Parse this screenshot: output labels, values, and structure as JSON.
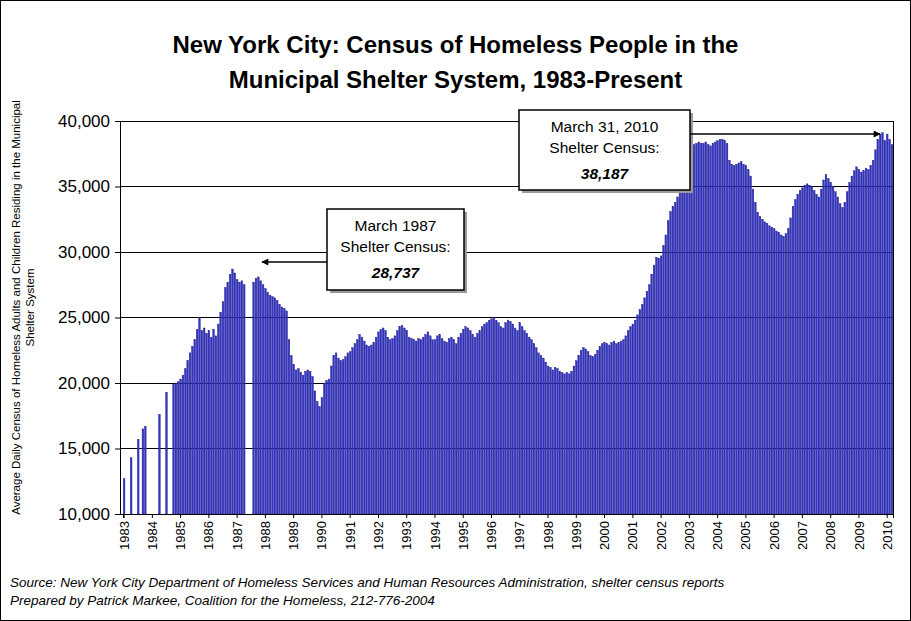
{
  "chart_data": {
    "type": "bar",
    "title": [
      "New York City:  Census of Homeless People in the",
      "Municipal Shelter System, 1983-Present"
    ],
    "y_label": [
      "Average Daily Census of Homeless Adults and Children Residing in the Municipal",
      "Shelter System"
    ],
    "categories": [
      "1983",
      null,
      null,
      null,
      null,
      null,
      null,
      null,
      null,
      null,
      null,
      null,
      "1984",
      null,
      null,
      null,
      null,
      null,
      null,
      null,
      null,
      null,
      null,
      null,
      "1985",
      null,
      null,
      null,
      null,
      null,
      null,
      null,
      null,
      null,
      null,
      null,
      "1986",
      null,
      null,
      null,
      null,
      null,
      null,
      null,
      null,
      null,
      null,
      null,
      "1987",
      null,
      null,
      null,
      null,
      null,
      null,
      null,
      null,
      null,
      null,
      null,
      "1988",
      null,
      null,
      null,
      null,
      null,
      null,
      null,
      null,
      null,
      null,
      null,
      "1989",
      null,
      null,
      null,
      null,
      null,
      null,
      null,
      null,
      null,
      null,
      null,
      "1990",
      null,
      null,
      null,
      null,
      null,
      null,
      null,
      null,
      null,
      null,
      null,
      "1991",
      null,
      null,
      null,
      null,
      null,
      null,
      null,
      null,
      null,
      null,
      null,
      "1992",
      null,
      null,
      null,
      null,
      null,
      null,
      null,
      null,
      null,
      null,
      null,
      "1993",
      null,
      null,
      null,
      null,
      null,
      null,
      null,
      null,
      null,
      null,
      null,
      "1994",
      null,
      null,
      null,
      null,
      null,
      null,
      null,
      null,
      null,
      null,
      null,
      "1995",
      null,
      null,
      null,
      null,
      null,
      null,
      null,
      null,
      null,
      null,
      null,
      "1996",
      null,
      null,
      null,
      null,
      null,
      null,
      null,
      null,
      null,
      null,
      null,
      "1997",
      null,
      null,
      null,
      null,
      null,
      null,
      null,
      null,
      null,
      null,
      null,
      "1998",
      null,
      null,
      null,
      null,
      null,
      null,
      null,
      null,
      null,
      null,
      null,
      "1999",
      null,
      null,
      null,
      null,
      null,
      null,
      null,
      null,
      null,
      null,
      null,
      "2000",
      null,
      null,
      null,
      null,
      null,
      null,
      null,
      null,
      null,
      null,
      null,
      "2001",
      null,
      null,
      null,
      null,
      null,
      null,
      null,
      null,
      null,
      null,
      null,
      "2002",
      null,
      null,
      null,
      null,
      null,
      null,
      null,
      null,
      null,
      null,
      null,
      "2003",
      null,
      null,
      null,
      null,
      null,
      null,
      null,
      null,
      null,
      null,
      null,
      "2004",
      null,
      null,
      null,
      null,
      null,
      null,
      null,
      null,
      null,
      null,
      null,
      "2005",
      null,
      null,
      null,
      null,
      null,
      null,
      null,
      null,
      null,
      null,
      null,
      "2006",
      null,
      null,
      null,
      null,
      null,
      null,
      null,
      null,
      null,
      null,
      null,
      "2007",
      null,
      null,
      null,
      null,
      null,
      null,
      null,
      null,
      null,
      null,
      null,
      "2008",
      null,
      null,
      null,
      null,
      null,
      null,
      null,
      null,
      null,
      null,
      null,
      "2009",
      null,
      null,
      null,
      null,
      null,
      null,
      null,
      null,
      null,
      null,
      null,
      "2010",
      null,
      null
    ],
    "values": [
      12700,
      null,
      null,
      14300,
      null,
      null,
      15700,
      null,
      16500,
      16700,
      null,
      null,
      null,
      null,
      null,
      17600,
      null,
      null,
      19300,
      null,
      null,
      19900,
      20000,
      20100,
      20300,
      20600,
      21100,
      21700,
      22300,
      22800,
      23300,
      24100,
      25000,
      24000,
      24200,
      23800,
      24000,
      23500,
      24100,
      23600,
      24500,
      25400,
      26200,
      27300,
      27700,
      28300,
      28700,
      28400,
      27900,
      27700,
      27800,
      27500,
      null,
      null,
      null,
      27700,
      28000,
      28100,
      27800,
      27500,
      27200,
      26900,
      26700,
      26600,
      26500,
      26300,
      26000,
      25800,
      25700,
      25500,
      23300,
      22100,
      21400,
      21000,
      21100,
      20800,
      20600,
      20900,
      21000,
      20900,
      20500,
      19400,
      18600,
      18200,
      18900,
      20000,
      20200,
      20300,
      21300,
      22100,
      22300,
      21900,
      21700,
      21800,
      22000,
      22300,
      22400,
      22700,
      23000,
      23300,
      23700,
      23500,
      23200,
      22900,
      22800,
      22900,
      23100,
      23500,
      23900,
      24100,
      24200,
      24000,
      23500,
      23300,
      23400,
      23600,
      24000,
      24300,
      24400,
      24200,
      24000,
      23500,
      23400,
      23300,
      23200,
      23400,
      23300,
      23500,
      23700,
      23900,
      23600,
      23300,
      23300,
      23600,
      23700,
      23400,
      23200,
      23100,
      23400,
      23500,
      23300,
      23000,
      23500,
      23800,
      24100,
      24300,
      24200,
      24000,
      23700,
      23500,
      23800,
      24000,
      24300,
      24500,
      24600,
      24800,
      24900,
      25000,
      24800,
      24600,
      24300,
      24200,
      24600,
      24800,
      24700,
      24500,
      24200,
      24000,
      24600,
      24300,
      24000,
      23800,
      23500,
      23300,
      23000,
      22700,
      22300,
      22100,
      21900,
      21600,
      21300,
      21200,
      21000,
      21200,
      21100,
      20900,
      20800,
      20700,
      20800,
      20700,
      20900,
      21300,
      21700,
      22100,
      22500,
      22700,
      22600,
      22400,
      22100,
      22000,
      22200,
      22500,
      22800,
      23000,
      23100,
      23000,
      22900,
      23100,
      23200,
      23000,
      23100,
      23200,
      23300,
      23600,
      24000,
      24300,
      24500,
      24800,
      25200,
      25600,
      26000,
      26500,
      27000,
      27500,
      28300,
      29000,
      29600,
      29500,
      29700,
      30500,
      31300,
      32400,
      33100,
      33500,
      33800,
      34200,
      34700,
      35300,
      36000,
      36800,
      37300,
      37900,
      38200,
      38300,
      38400,
      38300,
      38300,
      38400,
      38200,
      38100,
      38300,
      38400,
      38500,
      38600,
      38600,
      38500,
      38300,
      37000,
      36700,
      36600,
      36700,
      36800,
      36900,
      36700,
      36600,
      36300,
      35800,
      34800,
      33800,
      33000,
      32700,
      32500,
      32300,
      32200,
      32000,
      31900,
      31800,
      31600,
      31500,
      31300,
      31200,
      31400,
      31800,
      32600,
      33500,
      34000,
      34400,
      34700,
      34900,
      35100,
      35200,
      35100,
      35000,
      34700,
      34400,
      34200,
      34800,
      35500,
      35900,
      35600,
      35300,
      35000,
      34600,
      34200,
      33700,
      33400,
      33800,
      34600,
      35300,
      35800,
      36200,
      36500,
      36300,
      36100,
      36200,
      36400,
      36300,
      36600,
      37000,
      37800,
      38600,
      39000,
      39100,
      38500,
      39000,
      38600,
      38187
    ],
    "color": "#3333cc",
    "ylim": [
      10000,
      40000
    ],
    "yticks": [
      {
        "value": 10000,
        "label": "10,000"
      },
      {
        "value": 15000,
        "label": "15,000"
      },
      {
        "value": 20000,
        "label": "20,000"
      },
      {
        "value": 25000,
        "label": "25,000"
      },
      {
        "value": 30000,
        "label": "30,000"
      },
      {
        "value": 35000,
        "label": "35,000"
      },
      {
        "value": 40000,
        "label": "40,000"
      }
    ],
    "grid": true,
    "annotations": [
      {
        "text": [
          "March 1987",
          "Shelter Census:",
          "28,737"
        ]
      },
      {
        "text": [
          "March 31, 2010",
          "Shelter Census:",
          "38,187"
        ]
      }
    ],
    "source": [
      "Source:  New York City Department of Homeless Services and Human Resources Administration, shelter census reports",
      "Prepared by Patrick Markee, Coalition for the Homeless, 212-776-2004"
    ]
  }
}
